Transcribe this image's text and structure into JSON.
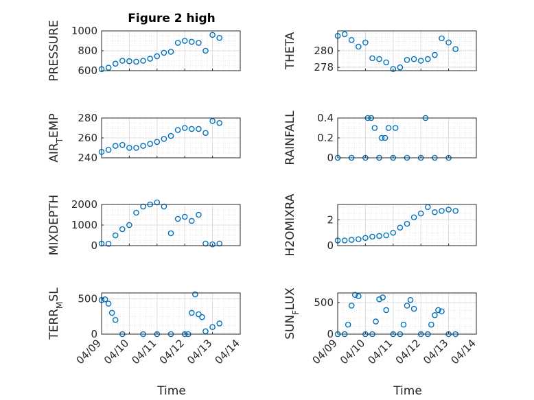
{
  "figure": {
    "title": "Figure 2 high"
  },
  "colors": {
    "marker": "#0072BD",
    "axis": "#262626",
    "grid": "#dfdfdf"
  },
  "chart_data": [
    {
      "type": "scatter",
      "ylabel": "PRESSURE",
      "ylim": [
        600,
        1000
      ],
      "yticks": [
        600,
        800,
        1000
      ],
      "grid": true,
      "x": [
        "04/09 00:00",
        "04/09 06:00",
        "04/09 12:00",
        "04/09 18:00",
        "04/10 00:00",
        "04/10 06:00",
        "04/10 12:00",
        "04/10 18:00",
        "04/11 00:00",
        "04/11 06:00",
        "04/11 12:00",
        "04/11 18:00",
        "04/12 00:00",
        "04/12 06:00",
        "04/12 12:00",
        "04/12 18:00",
        "04/13 00:00",
        "04/13 06:00"
      ],
      "y": [
        615,
        630,
        670,
        700,
        695,
        690,
        700,
        720,
        745,
        780,
        790,
        880,
        900,
        890,
        880,
        800,
        960,
        930
      ]
    },
    {
      "type": "scatter",
      "ylabel": "THETA",
      "ylim": [
        277.6,
        282.4
      ],
      "yticks": [
        278,
        280
      ],
      "grid": true,
      "x": [
        "04/09 00:00",
        "04/09 06:00",
        "04/09 12:00",
        "04/09 18:00",
        "04/10 00:00",
        "04/10 06:00",
        "04/10 12:00",
        "04/10 18:00",
        "04/11 00:00",
        "04/11 06:00",
        "04/11 12:00",
        "04/11 18:00",
        "04/12 00:00",
        "04/12 06:00",
        "04/12 12:00",
        "04/12 18:00",
        "04/13 00:00",
        "04/13 06:00"
      ],
      "y": [
        281.8,
        282.0,
        281.3,
        280.5,
        281.0,
        279.1,
        279.0,
        278.6,
        277.8,
        278.0,
        278.9,
        279.0,
        278.8,
        279.0,
        279.5,
        281.5,
        281.0,
        280.2
      ]
    },
    {
      "type": "scatter",
      "ylabel": "AIR_TEMP",
      "ylim": [
        240,
        280
      ],
      "yticks": [
        240,
        260,
        280
      ],
      "grid": true,
      "x": [
        "04/09 00:00",
        "04/09 06:00",
        "04/09 12:00",
        "04/09 18:00",
        "04/10 00:00",
        "04/10 06:00",
        "04/10 12:00",
        "04/10 18:00",
        "04/11 00:00",
        "04/11 06:00",
        "04/11 12:00",
        "04/11 18:00",
        "04/12 00:00",
        "04/12 06:00",
        "04/12 12:00",
        "04/12 18:00",
        "04/13 00:00",
        "04/13 06:00"
      ],
      "y": [
        246,
        248,
        252,
        253,
        250,
        250,
        252,
        254,
        256,
        259,
        262,
        268,
        270,
        269,
        269,
        265,
        277,
        275
      ]
    },
    {
      "type": "scatter",
      "ylabel": "RAINFALL",
      "ylim": [
        0,
        0.4
      ],
      "yticks": [
        0,
        0.2,
        0.4
      ],
      "grid": true,
      "x": [
        "04/09 00:00",
        "04/09 12:00",
        "04/10 00:00",
        "04/10 12:00",
        "04/11 00:00",
        "04/11 12:00",
        "04/12 00:00",
        "04/12 12:00",
        "04/13 00:00",
        "04/10 02:00",
        "04/10 05:00",
        "04/10 08:00",
        "04/10 14:00",
        "04/10 17:00",
        "04/10 20:00",
        "04/11 02:00",
        "04/12 04:00"
      ],
      "y": [
        0,
        0,
        0,
        0,
        0,
        0,
        0,
        0,
        0,
        0.4,
        0.4,
        0.3,
        0.2,
        0.2,
        0.3,
        0.3,
        0.4
      ]
    },
    {
      "type": "scatter",
      "ylabel": "MIXDEPTH",
      "ylim": [
        0,
        2000
      ],
      "yticks": [
        0,
        1000,
        2000
      ],
      "grid": true,
      "x": [
        "04/09 00:00",
        "04/09 06:00",
        "04/09 12:00",
        "04/09 18:00",
        "04/10 00:00",
        "04/10 06:00",
        "04/10 12:00",
        "04/10 18:00",
        "04/11 00:00",
        "04/11 06:00",
        "04/11 12:00",
        "04/11 18:00",
        "04/12 00:00",
        "04/12 06:00",
        "04/12 12:00",
        "04/12 18:00",
        "04/13 00:00",
        "04/13 06:00"
      ],
      "y": [
        100,
        90,
        500,
        800,
        1000,
        1600,
        1900,
        2000,
        2100,
        1900,
        600,
        1300,
        1400,
        1200,
        1500,
        100,
        60,
        100
      ]
    },
    {
      "type": "scatter",
      "ylabel": "H2OMIXRA",
      "ylim": [
        0,
        3.2
      ],
      "yticks": [
        0,
        2
      ],
      "grid": true,
      "x": [
        "04/09 00:00",
        "04/09 06:00",
        "04/09 12:00",
        "04/09 18:00",
        "04/10 00:00",
        "04/10 06:00",
        "04/10 12:00",
        "04/10 18:00",
        "04/11 00:00",
        "04/11 06:00",
        "04/11 12:00",
        "04/11 18:00",
        "04/12 00:00",
        "04/12 06:00",
        "04/12 12:00",
        "04/12 18:00",
        "04/13 00:00",
        "04/13 06:00"
      ],
      "y": [
        0.4,
        0.4,
        0.45,
        0.5,
        0.6,
        0.7,
        0.75,
        0.8,
        1.0,
        1.4,
        1.7,
        2.2,
        2.5,
        3.0,
        2.6,
        2.7,
        2.8,
        2.7
      ]
    },
    {
      "type": "scatter",
      "ylabel": "TERR_MSL",
      "ylim": [
        0,
        580
      ],
      "yticks": [
        0,
        500
      ],
      "grid": true,
      "x": [
        "04/09 00:00",
        "04/09 03:00",
        "04/09 06:00",
        "04/09 09:00",
        "04/09 12:00",
        "04/09 18:00",
        "04/10 12:00",
        "04/11 00:00",
        "04/11 12:00",
        "04/12 00:00",
        "04/12 03:00",
        "04/12 06:00",
        "04/12 09:00",
        "04/12 12:00",
        "04/12 15:00",
        "04/12 18:00",
        "04/13 00:00",
        "04/13 06:00"
      ],
      "y": [
        480,
        490,
        430,
        300,
        200,
        0,
        0,
        0,
        0,
        0,
        0,
        300,
        560,
        280,
        240,
        40,
        100,
        150
      ]
    },
    {
      "type": "scatter",
      "ylabel": "SUN_FLUX",
      "ylim": [
        0,
        650
      ],
      "yticks": [
        0,
        500
      ],
      "grid": true,
      "x": [
        "04/09 00:00",
        "04/09 06:00",
        "04/09 09:00",
        "04/09 12:00",
        "04/09 15:00",
        "04/09 18:00",
        "04/10 00:00",
        "04/10 06:00",
        "04/10 09:00",
        "04/10 12:00",
        "04/10 15:00",
        "04/10 18:00",
        "04/11 00:00",
        "04/11 06:00",
        "04/11 09:00",
        "04/11 12:00",
        "04/11 15:00",
        "04/11 18:00",
        "04/12 00:00",
        "04/12 06:00",
        "04/12 09:00",
        "04/12 12:00",
        "04/12 15:00",
        "04/12 18:00",
        "04/13 00:00",
        "04/13 06:00"
      ],
      "y": [
        0,
        0,
        150,
        450,
        620,
        600,
        0,
        0,
        200,
        550,
        580,
        380,
        0,
        0,
        150,
        450,
        540,
        400,
        0,
        0,
        150,
        300,
        380,
        360,
        0,
        0
      ]
    }
  ],
  "xaxis": {
    "ticks": [
      "04/09",
      "04/10",
      "04/11",
      "04/12",
      "04/13",
      "04/14"
    ],
    "label": "Time"
  }
}
